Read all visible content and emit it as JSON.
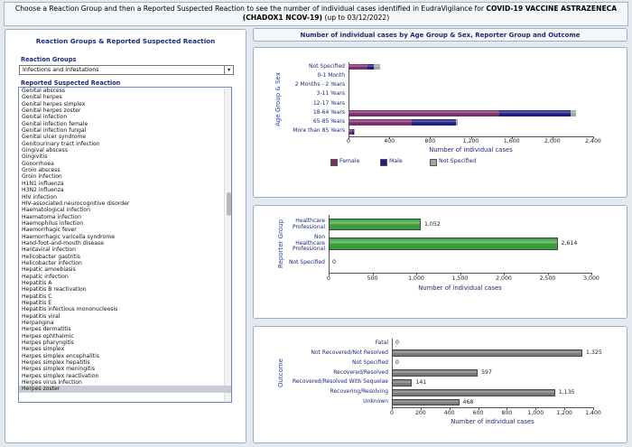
{
  "header": {
    "text_before": "Choose a Reaction Group and then a Reported Suspected Reaction to see the number of individual cases identified in EudraVigilance for",
    "product": "COVID-19 VACCINE ASTRAZENECA (CHADOX1 NCOV-19)",
    "text_after": "(up to 03/12/2022)"
  },
  "left_panel": {
    "title": "Reaction Groups & Reported Suspected Reaction",
    "group_label": "Reaction Groups",
    "group_value": "Infections and infestations",
    "reaction_label": "Reported Suspected Reaction",
    "reactions": [
      "Genital abscess",
      "Genital herpes",
      "Genital herpes simplex",
      "Genital herpes zoster",
      "Genital infection",
      "Genital infection female",
      "Genital infection fungal",
      "Genital ulcer syndrome",
      "Genitourinary tract infection",
      "Gingival abscess",
      "Gingivitis",
      "Gonorrhoea",
      "Groin abscess",
      "Groin infection",
      "H1N1 influenza",
      "H3N2 influenza",
      "HIV infection",
      "HIV-associated neurocognitive disorder",
      "Haematological infection",
      "Haematoma infection",
      "Haemophilus infection",
      "Haemorrhagic fever",
      "Haemorrhagic varicella syndrome",
      "Hand-foot-and-mouth disease",
      "Hantaviral infection",
      "Helicobacter gastritis",
      "Helicobacter infection",
      "Hepatic amoebiasis",
      "Hepatic infection",
      "Hepatitis A",
      "Hepatitis B reactivation",
      "Hepatitis C",
      "Hepatitis E",
      "Hepatitis infectious mononucleosis",
      "Hepatitis viral",
      "Herpangina",
      "Herpes dermatitis",
      "Herpes ophthalmic",
      "Herpes pharyngitis",
      "Herpes simplex",
      "Herpes simplex encephalitis",
      "Herpes simplex hepatitis",
      "Herpes simplex meningitis",
      "Herpes simplex reactivation",
      "Herpes virus infection",
      "Herpes zoster"
    ]
  },
  "right_panel": {
    "title": "Number of individual cases by Age Group & Sex, Reporter Group and Outcome"
  },
  "chart_data": [
    {
      "type": "bar",
      "orientation": "horizontal",
      "stacked": true,
      "y_label": "Age Group & Sex",
      "x_label": "Number of individual cases",
      "categories": [
        "Not Specified",
        "0-1 Month",
        "2 Months - 2 Years",
        "3-11 Years",
        "12-17 Years",
        "18-64 Years",
        "65-85 Years",
        "More than 85 Years"
      ],
      "series": [
        {
          "name": "Female",
          "color": "#7a2d6c",
          "values": [
            190,
            0,
            0,
            0,
            0,
            1480,
            620,
            35
          ]
        },
        {
          "name": "Male",
          "color": "#1d1d82",
          "values": [
            60,
            0,
            0,
            0,
            0,
            700,
            430,
            15
          ]
        },
        {
          "name": "Not Specified",
          "color": "#a3a3a3",
          "values": [
            60,
            0,
            0,
            0,
            0,
            55,
            25,
            5
          ]
        }
      ],
      "xlim": [
        0,
        2400
      ],
      "xticks": [
        0,
        400,
        800,
        {
          "value": 1200,
          "label": "1,200"
        },
        {
          "value": 1600,
          "label": "1,600"
        },
        {
          "value": 2000,
          "label": "2,000"
        },
        {
          "value": 2400,
          "label": "2,400"
        }
      ]
    },
    {
      "type": "bar",
      "orientation": "horizontal",
      "y_label": "Reporter Group",
      "x_label": "Number of individual cases",
      "color": "#3c9c3a",
      "categories": [
        "Healthcare Professional",
        "Non Healthcare Professional",
        "Not Specified"
      ],
      "values": [
        1052,
        2614,
        0
      ],
      "value_labels": [
        "1,052",
        "2,614",
        "0"
      ],
      "xlim": [
        0,
        3000
      ],
      "xticks": [
        0,
        500,
        {
          "value": 1000,
          "label": "1,000"
        },
        {
          "value": 1500,
          "label": "1,500"
        },
        {
          "value": 2000,
          "label": "2,000"
        },
        {
          "value": 2500,
          "label": "2,500"
        },
        {
          "value": 3000,
          "label": "3,000"
        }
      ]
    },
    {
      "type": "bar",
      "orientation": "horizontal",
      "y_label": "Outcome",
      "x_label": "Number of individual cases",
      "color": "#7a7a7a",
      "categories": [
        "Fatal",
        "Not Recovered/Not Resolved",
        "Not Specified",
        "Recovered/Resolved",
        "Recovered/Resolved With Sequelae",
        "Recovering/Resolving",
        "Unknown"
      ],
      "values": [
        0,
        1325,
        0,
        597,
        141,
        1135,
        468
      ],
      "value_labels": [
        "0",
        "1,325",
        "0",
        "597",
        "141",
        "1,135",
        "468"
      ],
      "xlim": [
        0,
        1400
      ],
      "xticks": [
        0,
        200,
        400,
        600,
        800,
        {
          "value": 1000,
          "label": "1,000"
        },
        {
          "value": 1200,
          "label": "1,200"
        },
        {
          "value": 1400,
          "label": "1,400"
        }
      ]
    }
  ]
}
